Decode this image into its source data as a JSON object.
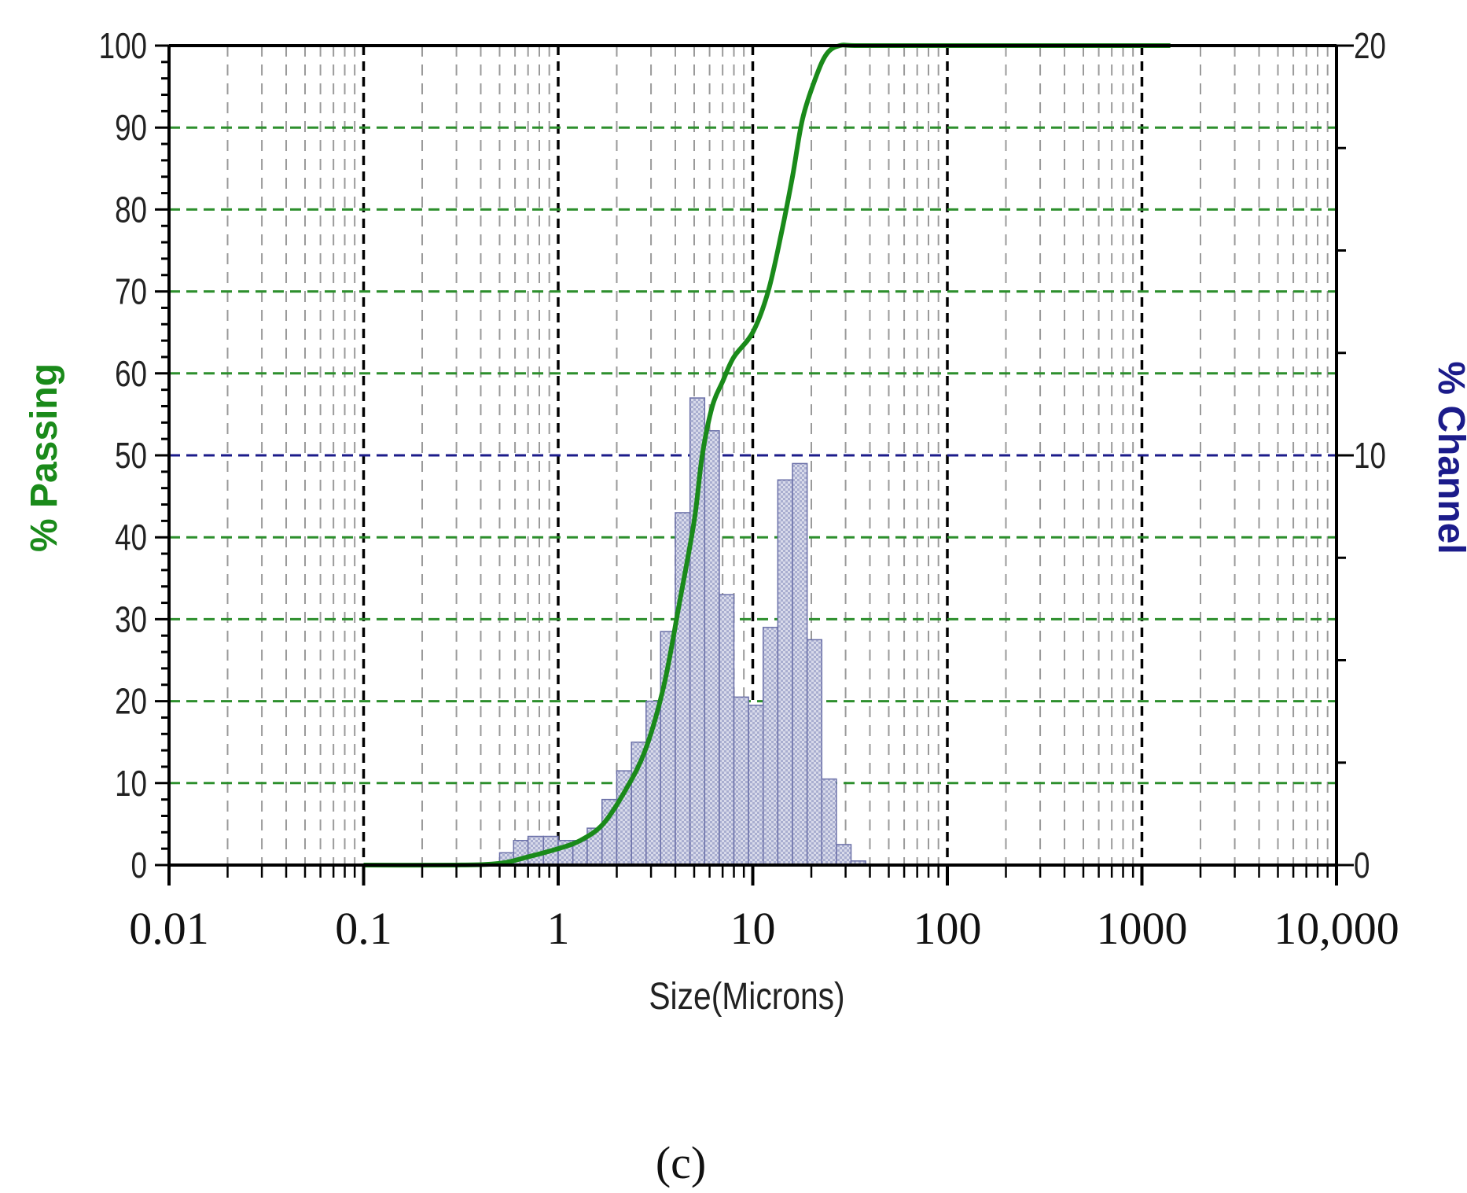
{
  "chart_data": {
    "type": "bar",
    "panel_label": "(c)",
    "xlabel": "Size(Microns)",
    "ylabel_left": "% Passing",
    "ylabel_right": "% Channel",
    "x_scale": "log",
    "xlim": [
      0.01,
      10000
    ],
    "ylim_left": [
      0,
      100
    ],
    "ylim_right": [
      0,
      20
    ],
    "x_tick_labels": [
      "0.01",
      "0.1",
      "1",
      "10",
      "100",
      "1000",
      "10,000"
    ],
    "y_left_ticks": [
      0,
      10,
      20,
      30,
      40,
      50,
      60,
      70,
      80,
      90,
      100
    ],
    "y_right_ticks": [
      0,
      10,
      20
    ],
    "grid": true,
    "colors": {
      "passing": "#1a8a1a",
      "channel_fill": "#a9aed0",
      "channel_edge": "#6b70a8",
      "right_label": "#1b1b8a",
      "grid_green": "#2d8f2d",
      "grid_dark": "#000000"
    },
    "series": [
      {
        "name": "% Passing",
        "kind": "line",
        "x": [
          0.1,
          0.3,
          0.5,
          0.7,
          1.0,
          1.3,
          1.7,
          2.2,
          2.8,
          3.5,
          4.2,
          5.0,
          5.5,
          6.2,
          7.0,
          8.0,
          10.0,
          12.0,
          14.0,
          16.0,
          18.0,
          21.0,
          24.0,
          28.0,
          35.0,
          100.0,
          1400.0
        ],
        "y": [
          0,
          0,
          0.2,
          1.0,
          2.0,
          3.0,
          5.0,
          9.0,
          14.0,
          22.0,
          32.0,
          42.0,
          50.0,
          56.0,
          59.0,
          62.0,
          65.0,
          70.0,
          77.0,
          84.0,
          91.0,
          96.0,
          99.0,
          100.0,
          100.0,
          100.0,
          100.0
        ]
      },
      {
        "name": "% Channel",
        "kind": "bar",
        "bin_edges": [
          0.5,
          0.59,
          0.7,
          0.84,
          1.0,
          1.19,
          1.41,
          1.68,
          2.0,
          2.38,
          2.83,
          3.36,
          4.0,
          4.76,
          5.66,
          6.73,
          8.0,
          9.51,
          11.31,
          13.45,
          16.0,
          19.03,
          22.63,
          26.91,
          32.0,
          38.05
        ],
        "values": [
          0.3,
          0.6,
          0.7,
          0.7,
          0.6,
          0.6,
          0.9,
          1.6,
          2.3,
          3.0,
          4.0,
          5.7,
          8.6,
          11.4,
          10.6,
          6.6,
          4.1,
          3.9,
          5.8,
          9.4,
          9.8,
          5.5,
          2.1,
          0.5,
          0.1
        ]
      }
    ]
  }
}
